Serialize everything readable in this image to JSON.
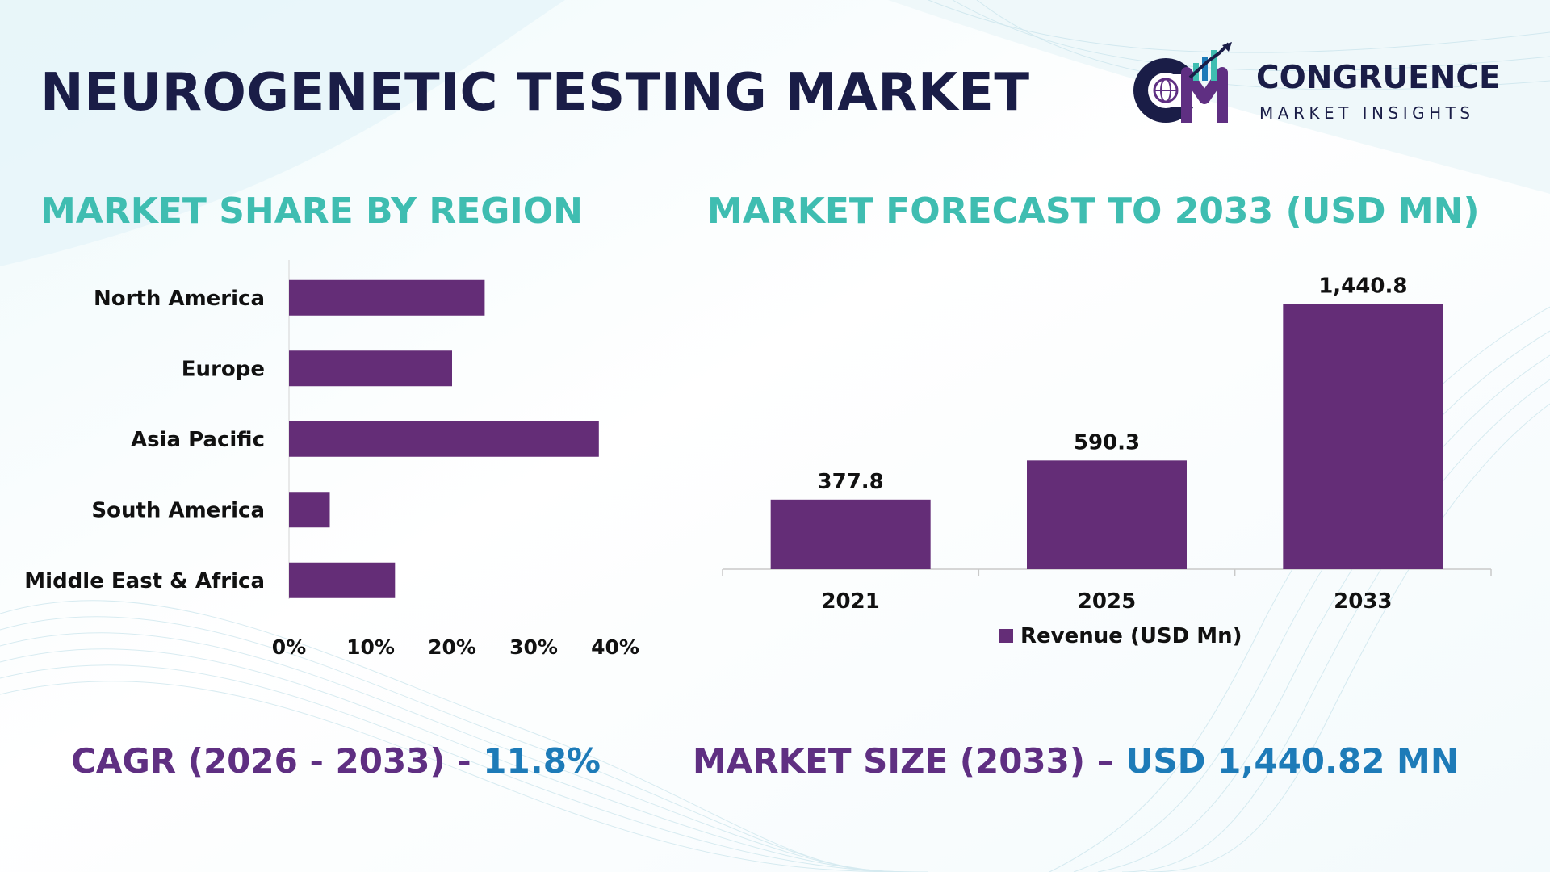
{
  "title": "NEUROGENETIC TESTING MARKET",
  "logo": {
    "name": "CONGRUENCE",
    "sub": "MARKET INSIGHTS"
  },
  "colors": {
    "bar": "#642d77",
    "title": "#1a1d47",
    "section_title": "#3fbdb1",
    "kpi_label": "#5f2f82",
    "kpi_value": "#1d7bb8"
  },
  "share_title": "MARKET SHARE BY REGION",
  "forecast_title": "MARKET FORECAST TO 2033 (USD MN)",
  "chart_data": [
    {
      "type": "bar",
      "orientation": "horizontal",
      "title": "MARKET SHARE BY REGION",
      "categories": [
        "North America",
        "Europe",
        "Asia Pacific",
        "South America",
        "Middle East & Africa"
      ],
      "values": [
        24,
        20,
        38,
        5,
        13
      ],
      "unit": "%",
      "xlim": [
        0,
        40
      ],
      "ticks": [
        "0%",
        "10%",
        "20%",
        "30%",
        "40%"
      ],
      "grid": false,
      "legend": null
    },
    {
      "type": "bar",
      "orientation": "vertical",
      "title": "MARKET FORECAST TO 2033 (USD MN)",
      "categories": [
        "2021",
        "2025",
        "2033"
      ],
      "series": [
        {
          "name": "Revenue (USD Mn)",
          "values": [
            377.8,
            590.3,
            1440.8
          ],
          "labels": [
            "377.8",
            "590.3",
            "1,440.8"
          ]
        }
      ],
      "ylim": [
        0,
        1600
      ],
      "grid": false,
      "legend": "bottom-center"
    }
  ],
  "kpis": {
    "cagr_label": "CAGR (2026 - 2033) - ",
    "cagr_value": "11.8%",
    "size_label": "MARKET SIZE (2033) – ",
    "size_value": "USD 1,440.82 MN"
  }
}
